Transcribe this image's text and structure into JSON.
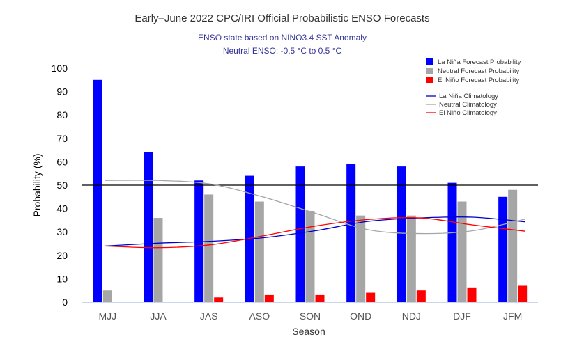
{
  "chart_data": {
    "type": "bar",
    "title": "Early–June 2022 CPC/IRI Official Probabilistic ENSO Forecasts",
    "subtitle_lines": [
      "ENSO state based on NINO3.4 SST Anomaly",
      "Neutral ENSO: -0.5 °C to 0.5 °C"
    ],
    "xlabel": "Season",
    "ylabel": "Probability (%)",
    "ylim": [
      0,
      100
    ],
    "yticks": [
      0,
      10,
      20,
      30,
      40,
      50,
      60,
      70,
      80,
      90,
      100
    ],
    "reference_line": 50,
    "categories": [
      "MJJ",
      "JJA",
      "JAS",
      "ASO",
      "SON",
      "OND",
      "NDJ",
      "DJF",
      "JFM"
    ],
    "series": [
      {
        "name": "La Niña Forecast Probability",
        "kind": "bar",
        "color": "#0000ff",
        "values": [
          95,
          64,
          52,
          54,
          58,
          59,
          58,
          51,
          45
        ]
      },
      {
        "name": "Neutral Forecast Probability",
        "kind": "bar",
        "color": "#a6a6a6",
        "values": [
          5,
          36,
          46,
          43,
          39,
          37,
          37,
          43,
          48
        ]
      },
      {
        "name": "El Niño Forecast Probability",
        "kind": "bar",
        "color": "#ff0000",
        "values": [
          0,
          0,
          2,
          3,
          3,
          4,
          5,
          6,
          7
        ]
      },
      {
        "name": "La Niña Climatology",
        "kind": "line",
        "color": "#0000cc",
        "values": [
          24,
          25.2,
          26,
          27.5,
          30.5,
          34.5,
          36,
          36.3,
          34.3
        ]
      },
      {
        "name": "Neutral Climatology",
        "kind": "line",
        "color": "#a6a6a6",
        "values": [
          52,
          52,
          50.5,
          45,
          38,
          31,
          29.3,
          30.5,
          35.5
        ]
      },
      {
        "name": "El Niño Climatology",
        "kind": "line",
        "color": "#ff0000",
        "values": [
          24,
          23.3,
          24.5,
          28.3,
          32.5,
          35.3,
          36,
          33,
          30.3
        ]
      }
    ],
    "legend_position": "top-right",
    "grid": false
  }
}
